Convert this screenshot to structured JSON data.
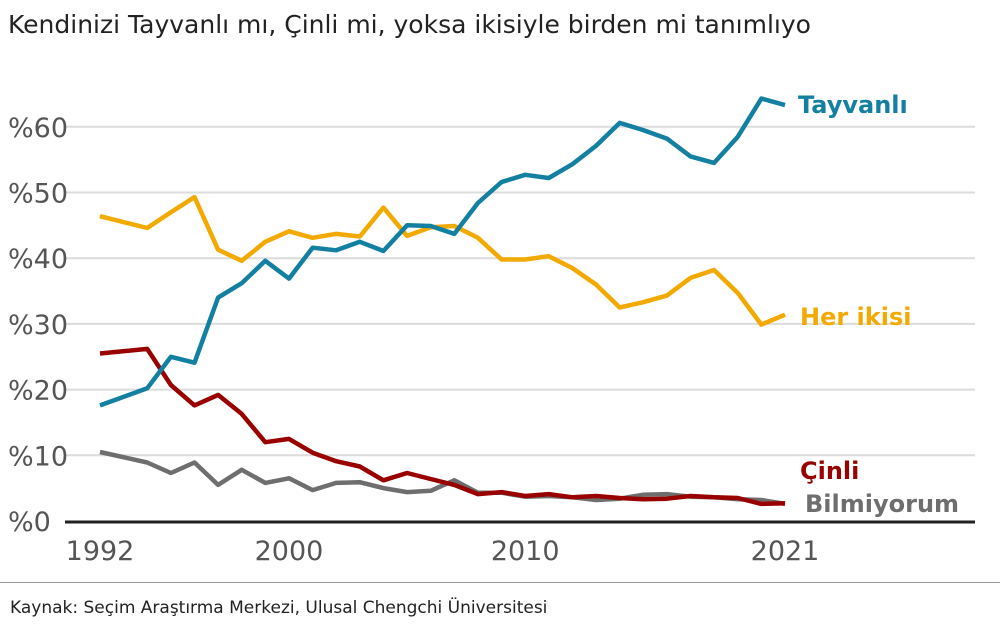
{
  "chart_data": {
    "type": "line",
    "title": "Kendinizi Tayvanlı mı, Çinli mi, yoksa ikisiyle birden mi tanımlıyo",
    "xlabel": "",
    "ylabel": "",
    "xlim": [
      1992,
      2021
    ],
    "ylim": [
      0,
      65
    ],
    "x_ticks": [
      "1992",
      "2000",
      "2010",
      "2021"
    ],
    "y_ticks": [
      "%0",
      "%10",
      "%20",
      "%30",
      "%40",
      "%50",
      "%60"
    ],
    "grid": true,
    "x": [
      1992,
      1994,
      1995,
      1996,
      1997,
      1998,
      1999,
      2000,
      2001,
      2002,
      2003,
      2004,
      2005,
      2006,
      2007,
      2008,
      2009,
      2010,
      2011,
      2012,
      2013,
      2014,
      2015,
      2016,
      2017,
      2018,
      2019,
      2020,
      2021
    ],
    "series": [
      {
        "name": "Tayvanlı",
        "color": "#1380A1",
        "values": [
          17.6,
          20.2,
          25.0,
          24.1,
          34.0,
          36.2,
          39.6,
          36.9,
          41.6,
          41.2,
          42.5,
          41.1,
          45.0,
          44.9,
          43.7,
          48.4,
          51.6,
          52.7,
          52.2,
          54.3,
          57.1,
          60.6,
          59.5,
          58.2,
          55.5,
          54.5,
          58.5,
          64.3,
          63.3
        ]
      },
      {
        "name": "Her ikisi",
        "color": "#F2A900",
        "values": [
          46.4,
          44.6,
          47.0,
          49.3,
          41.3,
          39.6,
          42.5,
          44.1,
          43.1,
          43.7,
          43.3,
          47.7,
          43.4,
          44.7,
          44.9,
          43.1,
          39.8,
          39.8,
          40.3,
          38.5,
          36.0,
          32.5,
          33.3,
          34.3,
          37.0,
          38.2,
          34.7,
          29.9,
          31.4
        ]
      },
      {
        "name": "Çinli",
        "color": "#990000",
        "values": [
          25.5,
          26.2,
          20.7,
          17.6,
          19.2,
          16.3,
          12.0,
          12.5,
          10.4,
          9.1,
          8.3,
          6.2,
          7.3,
          6.4,
          5.5,
          4.1,
          4.4,
          3.8,
          4.1,
          3.6,
          3.8,
          3.5,
          3.3,
          3.4,
          3.8,
          3.6,
          3.5,
          2.6,
          2.7
        ]
      },
      {
        "name": "Bilmiyorum",
        "color": "#6E6E6E",
        "values": [
          10.5,
          8.9,
          7.3,
          8.9,
          5.5,
          7.8,
          5.8,
          6.5,
          4.7,
          5.8,
          5.9,
          5.0,
          4.4,
          4.6,
          6.2,
          4.3,
          4.3,
          3.7,
          3.8,
          3.6,
          3.2,
          3.4,
          4.0,
          4.1,
          3.7,
          3.6,
          3.3,
          3.2,
          2.6
        ]
      }
    ]
  },
  "source": "Kaynak: Seçim Araştırma Merkezi, Ulusal Chengchi Üniversitesi"
}
